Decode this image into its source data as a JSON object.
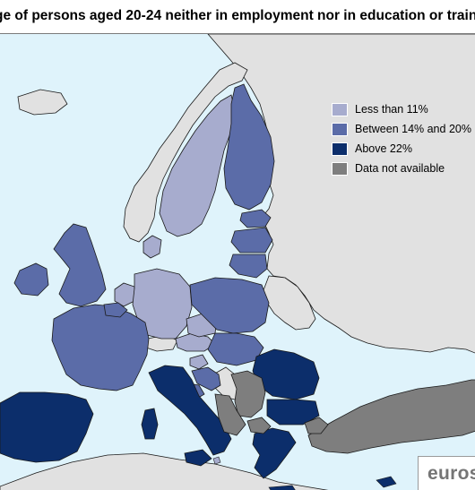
{
  "title": "ge of persons aged 20-24 neither in employment nor in education or training",
  "logo_text": "euros",
  "colors": {
    "sea": "#dff3fb",
    "non_eu": "#e1e1e1",
    "less_than_11": "#a7acce",
    "between_14_20": "#5b6ca8",
    "above_22": "#0c2e6b",
    "not_available": "#7e7e7e",
    "border": "#1a1a1a"
  },
  "legend": {
    "items": [
      {
        "label": "Less than 11%",
        "color": "#a7acce"
      },
      {
        "label": "Between 14% and 20%",
        "color": "#5b6ca8"
      },
      {
        "label": "Above 22%",
        "color": "#0c2e6b"
      },
      {
        "label": "Data not available",
        "color": "#7e7e7e"
      }
    ]
  }
}
